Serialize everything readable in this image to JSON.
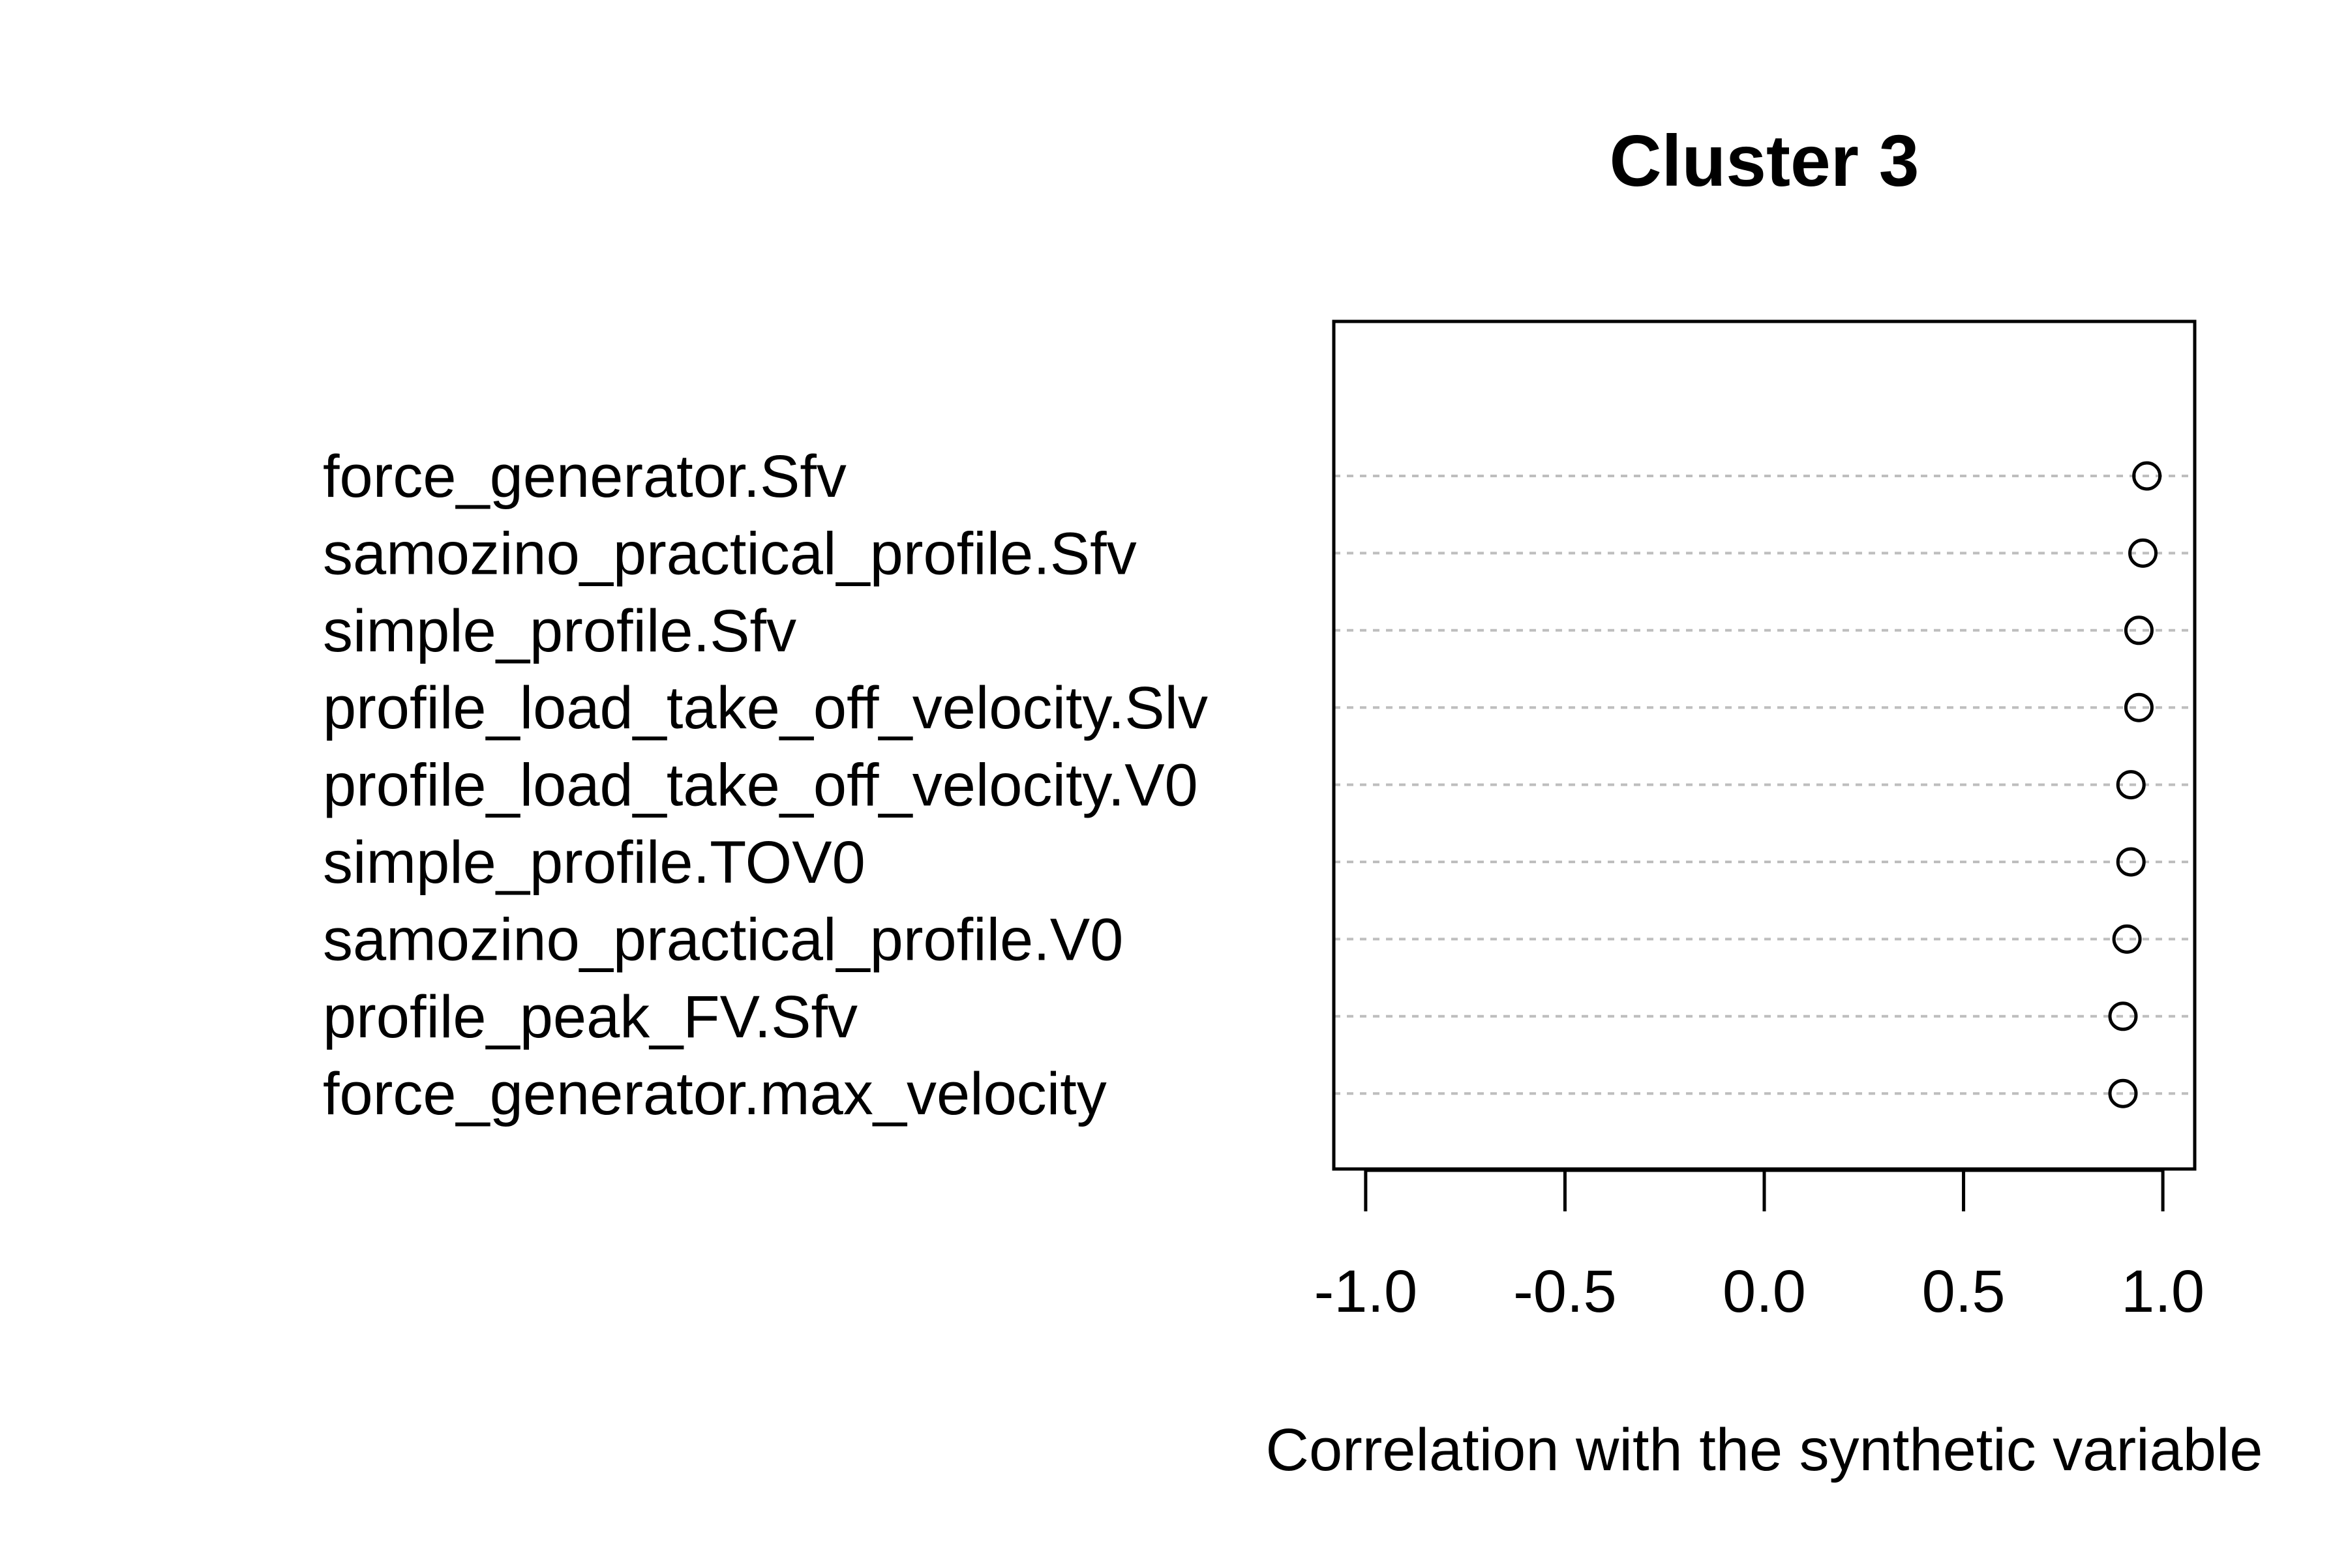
{
  "chart_data": {
    "type": "dotchart",
    "title": "Cluster 3",
    "xlabel": "Correlation with the synthetic variable",
    "ylabel": "",
    "xlim": [
      -1.08,
      1.08
    ],
    "x_ticks": [
      -1.0,
      -0.5,
      0.0,
      0.5,
      1.0
    ],
    "x_tick_labels": [
      "-1.0",
      "-0.5",
      "0.0",
      "0.5",
      "1.0"
    ],
    "grid": "dotted horizontal lines per variable",
    "point_style": "open circle",
    "variables": [
      "force_generator.Sfv",
      "samozino_practical_profile.Sfv",
      "simple_profile.Sfv",
      "profile_load_take_off_velocity.Slv",
      "profile_load_take_off_velocity.V0",
      "simple_profile.TOV0",
      "samozino_practical_profile.V0",
      "profile_peak_FV.Sfv",
      "force_generator.max_velocity"
    ],
    "values": [
      0.96,
      0.95,
      0.94,
      0.94,
      0.92,
      0.92,
      0.91,
      0.9,
      0.9
    ]
  },
  "colors": {
    "point": "#000000",
    "gridline": "#bebebe",
    "axis": "#000000",
    "background": "#ffffff"
  }
}
